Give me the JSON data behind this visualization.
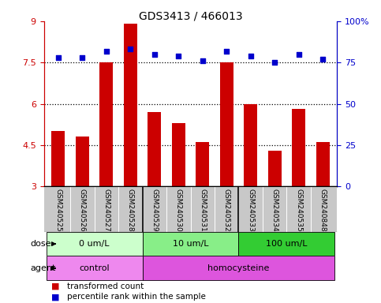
{
  "title": "GDS3413 / 466013",
  "samples": [
    "GSM240525",
    "GSM240526",
    "GSM240527",
    "GSM240528",
    "GSM240529",
    "GSM240530",
    "GSM240531",
    "GSM240532",
    "GSM240533",
    "GSM240534",
    "GSM240535",
    "GSM240848"
  ],
  "transformed_count": [
    5.0,
    4.8,
    7.5,
    8.9,
    5.7,
    5.3,
    4.6,
    7.5,
    6.0,
    4.3,
    5.8,
    4.6
  ],
  "percentile_rank": [
    78,
    78,
    82,
    83,
    80,
    79,
    76,
    82,
    79,
    75,
    80,
    77
  ],
  "bar_color": "#cc0000",
  "dot_color": "#0000cc",
  "ylim_left": [
    3,
    9
  ],
  "ylim_right": [
    0,
    100
  ],
  "yticks_left": [
    3,
    4.5,
    6,
    7.5,
    9
  ],
  "yticks_right": [
    0,
    25,
    50,
    75,
    100
  ],
  "ytick_labels_left": [
    "3",
    "4.5",
    "6",
    "7.5",
    "9"
  ],
  "ytick_labels_right": [
    "0",
    "25",
    "50",
    "75",
    "100%"
  ],
  "hlines": [
    4.5,
    6.0,
    7.5
  ],
  "dose_groups": [
    {
      "label": "0 um/L",
      "start": 0,
      "end": 4,
      "color": "#ccffcc"
    },
    {
      "label": "10 um/L",
      "start": 4,
      "end": 8,
      "color": "#88ee88"
    },
    {
      "label": "100 um/L",
      "start": 8,
      "end": 12,
      "color": "#33cc33"
    }
  ],
  "agent_groups": [
    {
      "label": "control",
      "start": 0,
      "end": 4,
      "color": "#ee88ee"
    },
    {
      "label": "homocysteine",
      "start": 4,
      "end": 12,
      "color": "#dd55dd"
    }
  ],
  "dose_label": "dose",
  "agent_label": "agent",
  "legend_bar": "transformed count",
  "legend_dot": "percentile rank within the sample",
  "tick_area_color": "#c8c8c8"
}
